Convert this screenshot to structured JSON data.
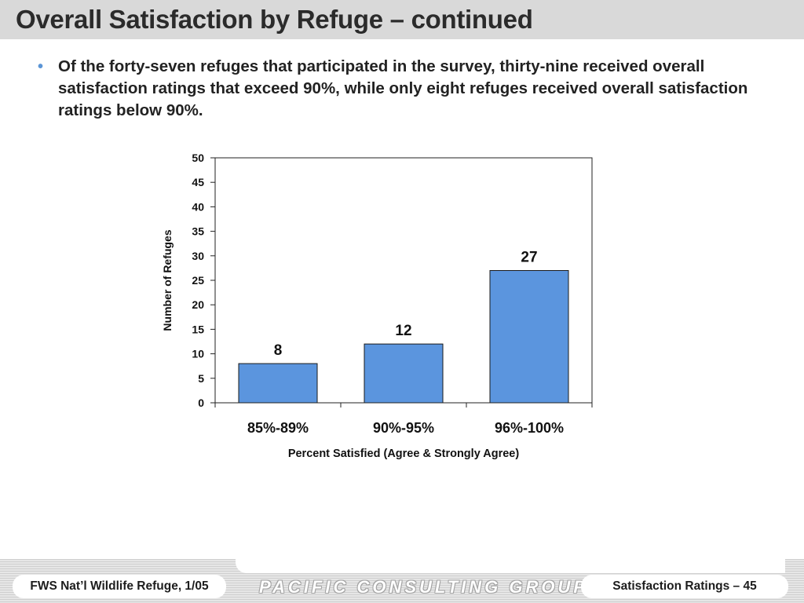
{
  "slide": {
    "title": "Overall Satisfaction by Refuge – continued",
    "bullet": "Of the forty-seven refuges that participated in the survey, thirty-nine received overall satisfaction ratings that exceed 90%, while only eight refuges received overall satisfaction ratings below 90%.",
    "bullet_marker": "•"
  },
  "footer": {
    "left": "FWS Nat’l Wildlife Refuge, 1/05",
    "logo": "PACIFIC CONSULTING GROUP",
    "right": "Satisfaction Ratings – 45"
  },
  "colors": {
    "bar": "#5b95de",
    "accent": "#5b95d6"
  },
  "chart_data": {
    "type": "bar",
    "categories": [
      "85%-89%",
      "90%-95%",
      "96%-100%"
    ],
    "values": [
      8,
      12,
      27
    ],
    "data_labels": [
      "8",
      "12",
      "27"
    ],
    "xlabel": "Percent Satisfied (Agree & Strongly Agree)",
    "ylabel": "Number of Refuges",
    "ylim": [
      0,
      50
    ],
    "yticks": [
      0,
      5,
      10,
      15,
      20,
      25,
      30,
      35,
      40,
      45,
      50
    ],
    "grid": false,
    "legend": "none"
  }
}
